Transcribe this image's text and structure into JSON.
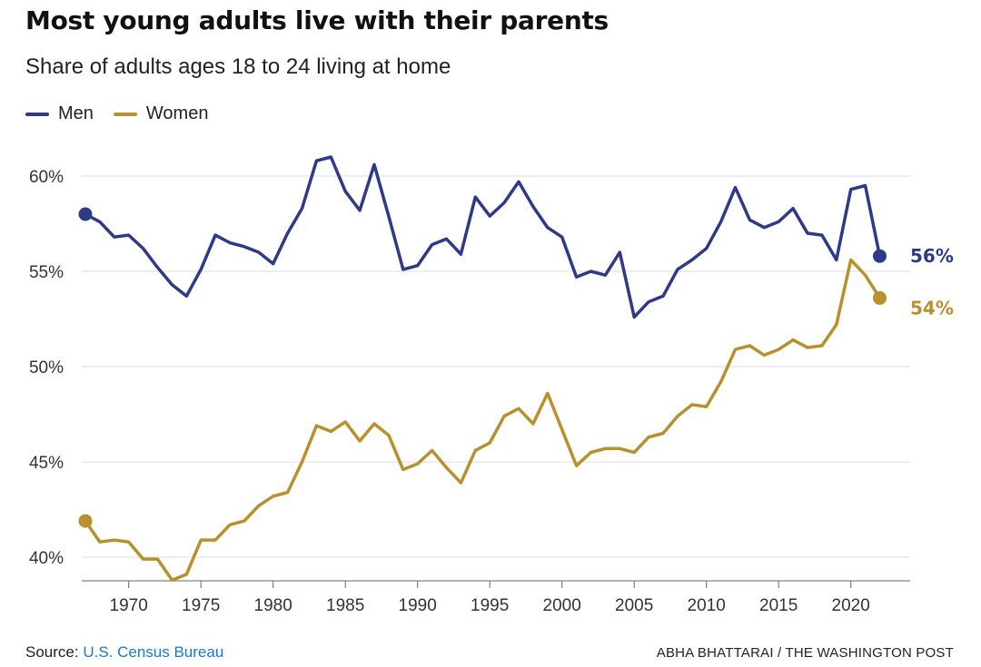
{
  "title": "Most young adults live with their parents",
  "subtitle": "Share of adults ages 18 to 24 living at home",
  "legend": [
    {
      "name": "Men",
      "color": "#2e3a87"
    },
    {
      "name": "Women",
      "color": "#b8902c"
    }
  ],
  "source": {
    "label": "Source: ",
    "link_text": "U.S. Census Bureau"
  },
  "credit": "ABHA BHATTARAI / THE WASHINGTON POST",
  "chart_data": {
    "type": "line",
    "title": "Most young adults live with their parents",
    "subtitle": "Share of adults ages 18 to 24 living at home",
    "xlabel": "",
    "ylabel": "",
    "xlim": [
      1967,
      2022
    ],
    "ylim": [
      38.5,
      61.5
    ],
    "x_ticks": [
      1970,
      1975,
      1980,
      1985,
      1990,
      1995,
      2000,
      2005,
      2010,
      2015,
      2020
    ],
    "x_tick_labels": [
      "1970",
      "1975",
      "1980",
      "1985",
      "1990",
      "1995",
      "2000",
      "2005",
      "2010",
      "2015",
      "2020"
    ],
    "y_ticks": [
      40,
      45,
      50,
      55,
      60
    ],
    "y_tick_labels": [
      "40%",
      "45%",
      "50%",
      "55%",
      "60%"
    ],
    "grid": true,
    "x": [
      1967,
      1968,
      1969,
      1970,
      1971,
      1972,
      1973,
      1974,
      1975,
      1976,
      1977,
      1978,
      1979,
      1980,
      1981,
      1982,
      1983,
      1984,
      1985,
      1986,
      1987,
      1988,
      1989,
      1990,
      1991,
      1992,
      1993,
      1994,
      1995,
      1996,
      1997,
      1998,
      1999,
      2000,
      2001,
      2002,
      2003,
      2004,
      2005,
      2006,
      2007,
      2008,
      2009,
      2010,
      2011,
      2012,
      2013,
      2014,
      2015,
      2016,
      2017,
      2018,
      2019,
      2020,
      2021,
      2022
    ],
    "series": [
      {
        "name": "Men",
        "color": "#2e3a87",
        "end_label": "56%",
        "values": [
          58.0,
          57.6,
          56.8,
          56.9,
          56.2,
          55.2,
          54.3,
          53.7,
          55.1,
          56.9,
          56.5,
          56.3,
          56.0,
          55.4,
          57.0,
          58.3,
          60.8,
          61.0,
          59.2,
          58.2,
          60.6,
          57.9,
          55.1,
          55.3,
          56.4,
          56.7,
          55.9,
          58.9,
          57.9,
          58.6,
          59.7,
          58.4,
          57.3,
          56.8,
          54.7,
          55.0,
          54.8,
          56.0,
          52.6,
          53.4,
          53.7,
          55.1,
          55.6,
          56.2,
          57.6,
          59.4,
          57.7,
          57.3,
          57.6,
          58.3,
          57.0,
          56.9,
          55.6,
          59.3,
          59.5,
          55.8
        ]
      },
      {
        "name": "Women",
        "color": "#b8902c",
        "end_label": "54%",
        "values": [
          41.9,
          40.8,
          40.9,
          40.8,
          39.9,
          39.9,
          38.8,
          39.1,
          40.9,
          40.9,
          41.7,
          41.9,
          42.7,
          43.2,
          43.4,
          45.0,
          46.9,
          46.6,
          47.1,
          46.1,
          47.0,
          46.4,
          44.6,
          44.9,
          45.6,
          44.7,
          43.9,
          45.6,
          46.0,
          47.4,
          47.8,
          47.0,
          48.6,
          46.7,
          44.8,
          45.5,
          45.7,
          45.7,
          45.5,
          46.3,
          46.5,
          47.4,
          48.0,
          47.9,
          49.2,
          50.9,
          51.1,
          50.6,
          50.9,
          51.4,
          51.0,
          51.1,
          52.2,
          55.6,
          54.8,
          53.6
        ]
      }
    ]
  }
}
